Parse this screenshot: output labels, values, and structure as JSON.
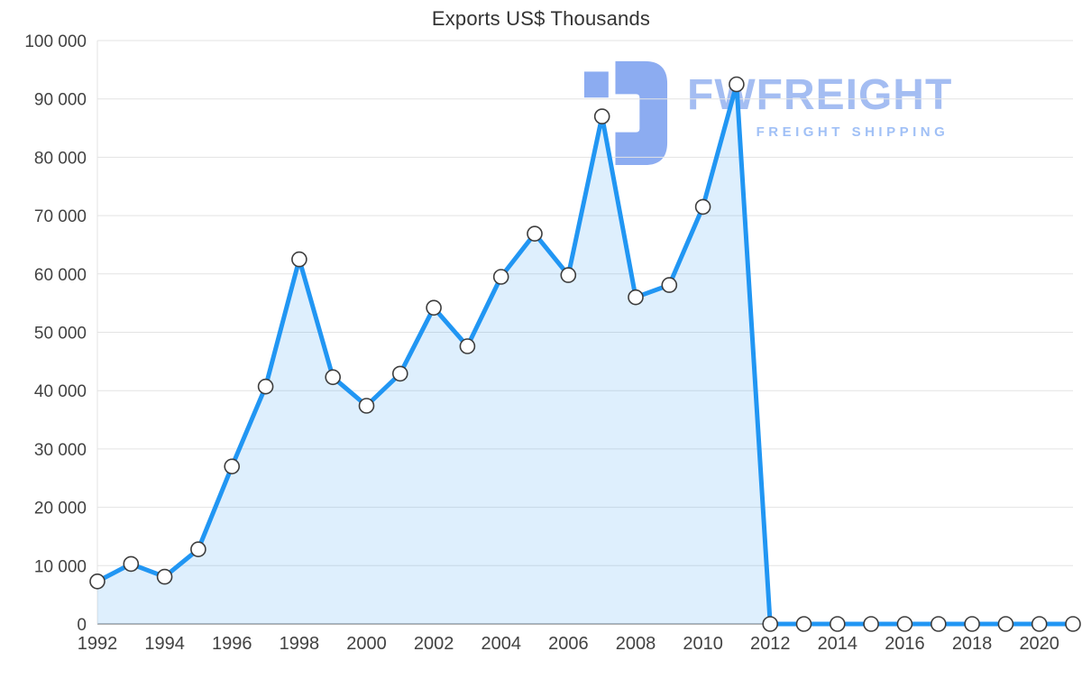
{
  "title": "Exports US$ Thousands",
  "watermark": {
    "brand": "FWFREIGHT",
    "tagline": "FREIGHT SHIPPING",
    "icon_color": "#7fa3ef"
  },
  "colors": {
    "line": "#2196f3",
    "fill": "rgba(33,150,243,0.15)",
    "grid": "#e3e3e3",
    "axis": "#9e9e9e",
    "tick_text": "#424242",
    "marker_stroke": "#3d3d3d",
    "marker_fill": "#ffffff"
  },
  "chart_data": {
    "type": "area",
    "title": "Exports US$ Thousands",
    "xlabel": "",
    "ylabel": "",
    "x": [
      1992,
      1993,
      1994,
      1995,
      1996,
      1997,
      1998,
      1999,
      2000,
      2001,
      2002,
      2003,
      2004,
      2005,
      2006,
      2007,
      2008,
      2009,
      2010,
      2011,
      2012,
      2013,
      2014,
      2015,
      2016,
      2017,
      2018,
      2019,
      2020,
      2021
    ],
    "values": [
      7300,
      10300,
      8100,
      12800,
      27000,
      40700,
      62500,
      42300,
      37400,
      42900,
      54200,
      47600,
      59500,
      66900,
      59800,
      87000,
      56000,
      58100,
      71500,
      92500,
      0,
      0,
      0,
      0,
      0,
      0,
      0,
      0,
      0,
      0
    ],
    "ylim": [
      0,
      100000
    ],
    "y_tick_step": 10000,
    "y_tick_labels": [
      "0",
      "10 000",
      "20 000",
      "30 000",
      "40 000",
      "50 000",
      "60 000",
      "70 000",
      "80 000",
      "90 000",
      "100 000"
    ],
    "x_tick_years": [
      1992,
      1994,
      1996,
      1998,
      2000,
      2002,
      2004,
      2006,
      2008,
      2010,
      2012,
      2014,
      2016,
      2018,
      2020
    ],
    "grid": "horizontal",
    "legend": "none"
  }
}
